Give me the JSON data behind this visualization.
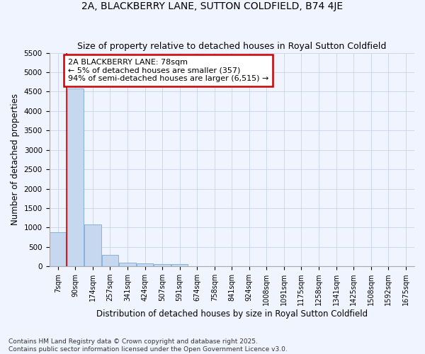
{
  "title": "2A, BLACKBERRY LANE, SUTTON COLDFIELD, B74 4JE",
  "subtitle": "Size of property relative to detached houses in Royal Sutton Coldfield",
  "xlabel": "Distribution of detached houses by size in Royal Sutton Coldfield",
  "ylabel": "Number of detached properties",
  "footer": "Contains HM Land Registry data © Crown copyright and database right 2025.\nContains public sector information licensed under the Open Government Licence v3.0.",
  "categories": [
    "7sqm",
    "90sqm",
    "174sqm",
    "257sqm",
    "341sqm",
    "424sqm",
    "507sqm",
    "591sqm",
    "674sqm",
    "758sqm",
    "841sqm",
    "924sqm",
    "1008sqm",
    "1091sqm",
    "1175sqm",
    "1258sqm",
    "1341sqm",
    "1425sqm",
    "1508sqm",
    "1592sqm",
    "1675sqm"
  ],
  "values": [
    880,
    4580,
    1080,
    290,
    90,
    80,
    50,
    50,
    0,
    0,
    0,
    0,
    0,
    0,
    0,
    0,
    0,
    0,
    0,
    0,
    0
  ],
  "bar_color": "#c5d8f0",
  "bar_edge_color": "#7aaad4",
  "red_line_x": 0.5,
  "annotation_text": "2A BLACKBERRY LANE: 78sqm\n← 5% of detached houses are smaller (357)\n94% of semi-detached houses are larger (6,515) →",
  "annotation_box_color": "#ffffff",
  "annotation_box_edge_color": "#cc0000",
  "red_line_color": "#cc0000",
  "ylim": [
    0,
    5500
  ],
  "yticks": [
    0,
    500,
    1000,
    1500,
    2000,
    2500,
    3000,
    3500,
    4000,
    4500,
    5000,
    5500
  ],
  "bg_color": "#f0f4ff",
  "title_fontsize": 10,
  "subtitle_fontsize": 9,
  "axis_label_fontsize": 8.5,
  "tick_fontsize": 7,
  "annotation_fontsize": 8
}
